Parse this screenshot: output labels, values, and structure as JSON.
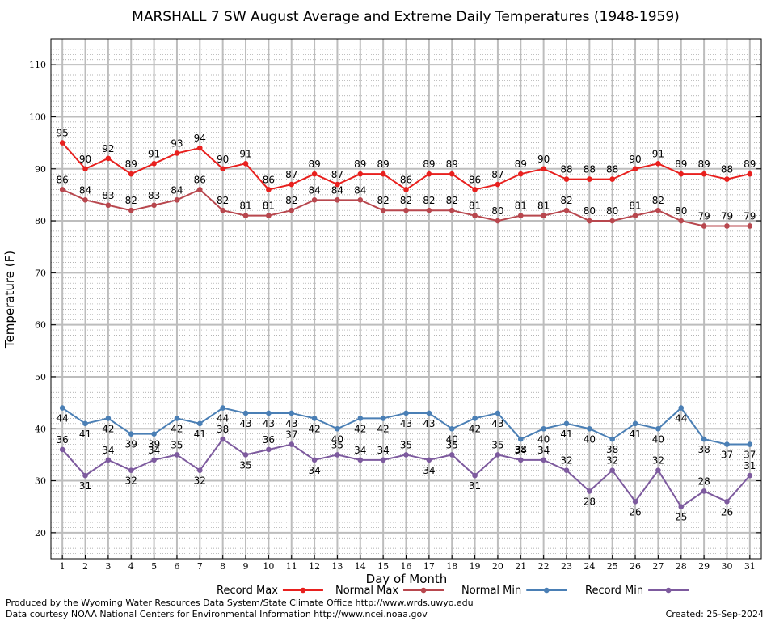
{
  "chart_data": {
    "type": "line",
    "title": "MARSHALL 7 SW August Average and Extreme Daily Temperatures (1948-1959)",
    "xlabel": "Day of Month",
    "ylabel": "Temperature (F)",
    "ylim": [
      15,
      115
    ],
    "xlim": [
      0.5,
      31.5
    ],
    "yticks": [
      20,
      30,
      40,
      50,
      60,
      70,
      80,
      90,
      100,
      110
    ],
    "x": [
      1,
      2,
      3,
      4,
      5,
      6,
      7,
      8,
      9,
      10,
      11,
      12,
      13,
      14,
      15,
      16,
      17,
      18,
      19,
      20,
      21,
      22,
      23,
      24,
      25,
      26,
      27,
      28,
      29,
      30,
      31
    ],
    "grid": true,
    "legend_position": "bottom",
    "series": [
      {
        "name": "Record Max",
        "color": "#e8201e",
        "values": [
          95,
          90,
          92,
          89,
          91,
          93,
          94,
          90,
          91,
          86,
          87,
          89,
          87,
          89,
          89,
          86,
          89,
          89,
          86,
          87,
          89,
          90,
          88,
          88,
          88,
          90,
          91,
          89,
          89,
          88,
          89
        ]
      },
      {
        "name": "Normal Max",
        "color": "#b8474e",
        "values": [
          86,
          84,
          83,
          82,
          83,
          84,
          86,
          82,
          81,
          81,
          82,
          84,
          84,
          84,
          82,
          82,
          82,
          82,
          81,
          80,
          81,
          81,
          82,
          80,
          80,
          81,
          82,
          80,
          79,
          79,
          79
        ]
      },
      {
        "name": "Normal Min",
        "color": "#4a7fb5",
        "values": [
          44,
          41,
          42,
          39,
          39,
          42,
          41,
          44,
          43,
          43,
          43,
          42,
          40,
          42,
          42,
          43,
          43,
          40,
          42,
          43,
          38,
          40,
          41,
          40,
          38,
          41,
          40,
          44,
          38,
          37,
          37
        ]
      },
      {
        "name": "Record Min",
        "color": "#7d5a9e",
        "values": [
          36,
          31,
          34,
          32,
          34,
          35,
          32,
          38,
          35,
          36,
          37,
          34,
          35,
          34,
          34,
          35,
          34,
          35,
          31,
          35,
          34,
          34,
          32,
          28,
          32,
          26,
          32,
          25,
          28,
          26,
          31
        ]
      }
    ]
  },
  "footer": {
    "credit_line1": "Produced by the Wyoming Water Resources Data System/State Climate Office http://www.wrds.uwyo.edu",
    "credit_line2": "Data courtesy NOAA National Centers for Environmental Information http://www.ncei.noaa.gov",
    "created": "Created:  25-Sep-2024"
  }
}
